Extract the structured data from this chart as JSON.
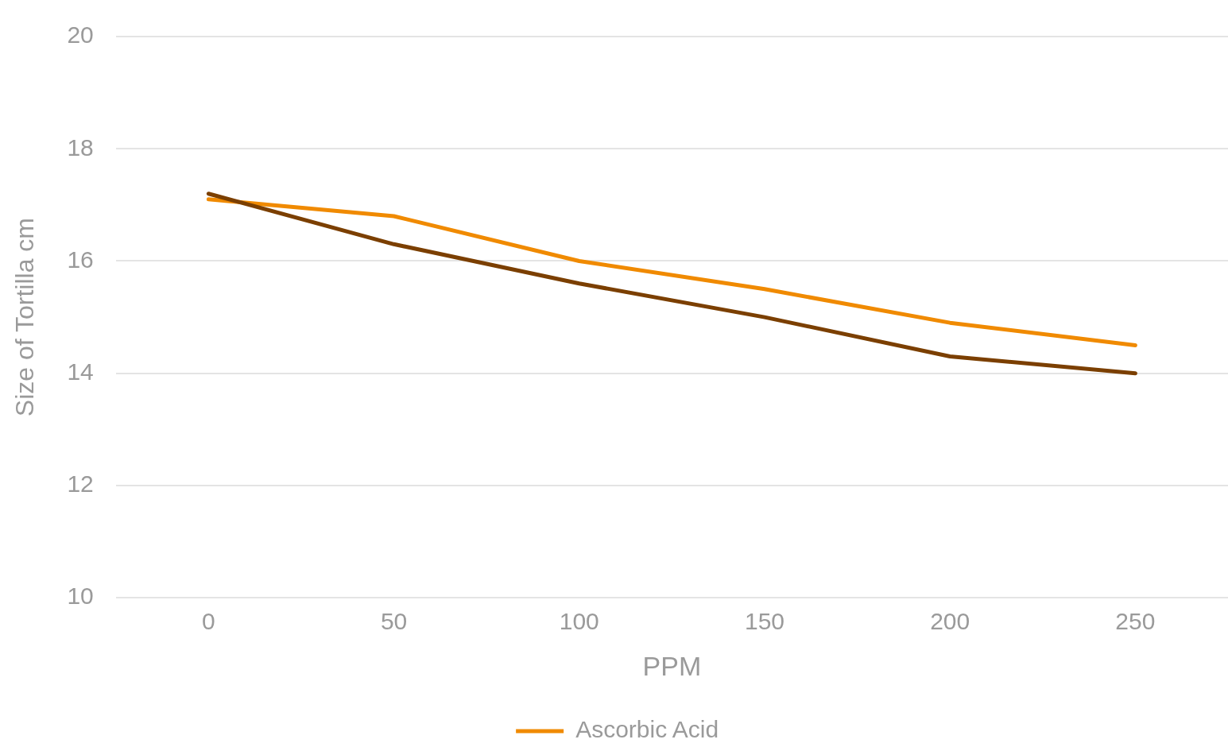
{
  "chart_data": {
    "type": "line",
    "xlabel": "PPM",
    "ylabel": "Size of Tortilla cm",
    "categories": [
      "0",
      "50",
      "100",
      "150",
      "200",
      "250"
    ],
    "series": [
      {
        "color": "#7b3f00",
        "values": [
          17.2,
          16.3,
          15.6,
          15.0,
          14.3,
          14.0
        ]
      },
      {
        "name": "Ascorbic Acid",
        "color": "#f08a00",
        "values": [
          17.1,
          16.8,
          16.0,
          15.5,
          14.9,
          14.5
        ]
      }
    ],
    "ylim": [
      10,
      20
    ],
    "yticks": [
      10,
      12,
      14,
      16,
      18,
      20
    ],
    "grid": "y",
    "legend": "bottom",
    "marker": "none",
    "line_style": "solid"
  }
}
